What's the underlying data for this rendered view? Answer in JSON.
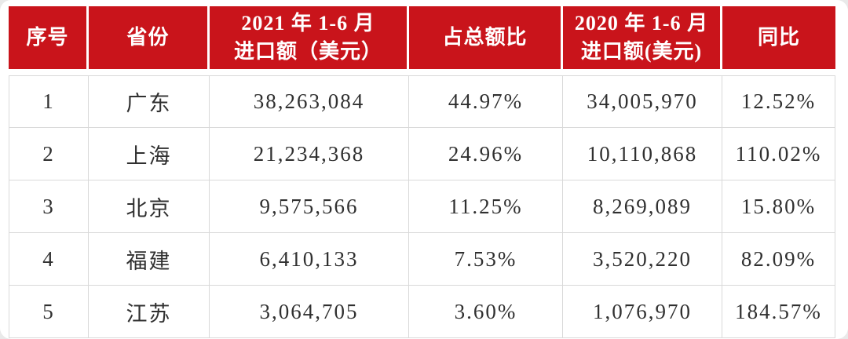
{
  "colors": {
    "header_bg": "#c9141b",
    "header_text": "#ffffff",
    "body_text": "#303030",
    "grid_line": "#d9d9d9",
    "card_bg": "#ffffff"
  },
  "table": {
    "columns": [
      {
        "key": "index",
        "label": "序号"
      },
      {
        "key": "province",
        "label": "省份"
      },
      {
        "key": "import_2021",
        "label_line1": "2021 年 1-6 月",
        "label_line2": "进口额（美元）"
      },
      {
        "key": "share",
        "label": "占总额比"
      },
      {
        "key": "import_2020",
        "label_line1": "2020 年 1-6 月",
        "label_line2": "进口额(美元)"
      },
      {
        "key": "yoy",
        "label": "同比"
      }
    ],
    "rows": [
      [
        "1",
        "广东",
        "38,263,084",
        "44.97%",
        "34,005,970",
        "12.52%"
      ],
      [
        "2",
        "上海",
        "21,234,368",
        "24.96%",
        "10,110,868",
        "110.02%"
      ],
      [
        "3",
        "北京",
        "9,575,566",
        "11.25%",
        "8,269,089",
        "15.80%"
      ],
      [
        "4",
        "福建",
        "6,410,133",
        "7.53%",
        "3,520,220",
        "82.09%"
      ],
      [
        "5",
        "江苏",
        "3,064,705",
        "3.60%",
        "1,076,970",
        "184.57%"
      ]
    ]
  },
  "chart_data": {
    "type": "table",
    "title": "",
    "columns": [
      "序号",
      "省份",
      "2021 年 1-6 月 进口额（美元）",
      "占总额比",
      "2020 年 1-6 月 进口额(美元)",
      "同比"
    ],
    "rows": [
      [
        "1",
        "广东",
        "38,263,084",
        "44.97%",
        "34,005,970",
        "12.52%"
      ],
      [
        "2",
        "上海",
        "21,234,368",
        "24.96%",
        "10,110,868",
        "110.02%"
      ],
      [
        "3",
        "北京",
        "9,575,566",
        "11.25%",
        "8,269,089",
        "15.80%"
      ],
      [
        "4",
        "福建",
        "6,410,133",
        "7.53%",
        "3,520,220",
        "82.09%"
      ],
      [
        "5",
        "江苏",
        "3,064,705",
        "3.60%",
        "1,076,970",
        "184.57%"
      ]
    ],
    "numeric": {
      "import_2021": [
        38263084,
        21234368,
        9575566,
        6410133,
        3064705
      ],
      "share_pct": [
        44.97,
        24.96,
        11.25,
        7.53,
        3.6
      ],
      "import_2020": [
        34005970,
        10110868,
        8269089,
        3520220,
        1076970
      ],
      "yoy_pct": [
        12.52,
        110.02,
        15.8,
        82.09,
        184.57
      ]
    }
  }
}
